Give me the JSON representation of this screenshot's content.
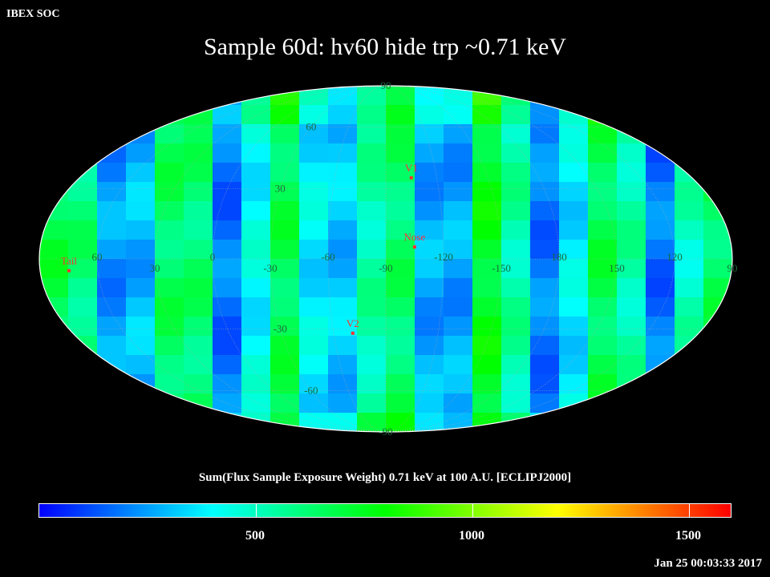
{
  "header": {
    "tag": "IBEX SOC",
    "title": "Sample 60d: hv60 hide trp ~0.71 keV"
  },
  "colorbar": {
    "title": "Sum(Flux Sample Exposure Weight)  0.71 keV at 100 A.U. [ECLIPJ2000]",
    "min": 0,
    "max": 1600,
    "ticks": [
      {
        "value": 500,
        "label": "500"
      },
      {
        "value": 1000,
        "label": "1000"
      },
      {
        "value": 1500,
        "label": "1500"
      }
    ],
    "stops": [
      "#0000ff",
      "#00ffff",
      "#00ff00",
      "#ffff00",
      "#ff0000"
    ]
  },
  "map": {
    "projection": "mollweide",
    "center_longitude": 270,
    "graticule_color": "#aaaaaa",
    "longitude_labels": [
      {
        "lon": 60,
        "text": "60"
      },
      {
        "lon": 30,
        "text": "30"
      },
      {
        "lon": 0,
        "text": "0"
      },
      {
        "lon": -30,
        "text": "-30"
      },
      {
        "lon": -60,
        "text": "-60"
      },
      {
        "lon": -90,
        "text": "-90"
      },
      {
        "lon": -120,
        "text": "-120"
      },
      {
        "lon": -150,
        "text": "-150"
      },
      {
        "lon": 180,
        "text": "180"
      },
      {
        "lon": 150,
        "text": "150"
      },
      {
        "lon": 120,
        "text": "120"
      },
      {
        "lon": 90,
        "text": "90"
      }
    ],
    "latitude_labels": [
      {
        "lat": 90,
        "text": "90"
      },
      {
        "lat": 60,
        "text": "60"
      },
      {
        "lat": 30,
        "text": "30"
      },
      {
        "lat": -30,
        "text": "-30"
      },
      {
        "lat": -60,
        "text": "-60"
      },
      {
        "lat": -90,
        "text": "-90"
      }
    ],
    "markers": [
      {
        "name": "V1",
        "lon": 255,
        "lat": 35,
        "color": "#ff3030"
      },
      {
        "name": "Nose",
        "lon": 255,
        "lat": 5,
        "color": "#ff3030"
      },
      {
        "name": "Tail",
        "lon": 75,
        "lat": -5,
        "color": "#ff3030"
      },
      {
        "name": "V2",
        "lon": 289,
        "lat": -32,
        "color": "#ff3030"
      }
    ]
  },
  "timestamp": "Jan 25 00:03:33 2017"
}
